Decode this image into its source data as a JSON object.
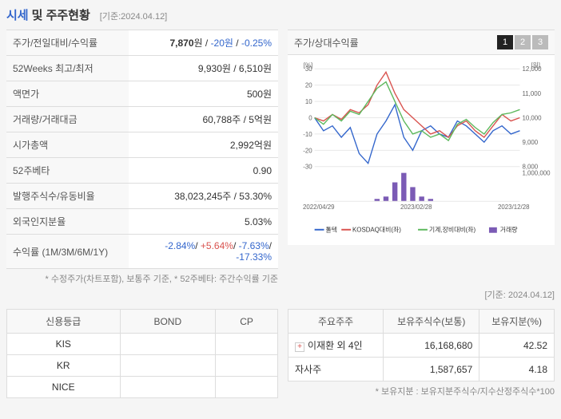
{
  "header": {
    "left": "시세",
    "right": "및 주주현황",
    "date": "[기준:2024.04.12]"
  },
  "info": {
    "rows": [
      {
        "label": "주가/전일대비/수익률",
        "value_html": "<b>7,870</b>원 / <span class='neg'>-20원</span> / <span class='neg'>-0.25%</span>"
      },
      {
        "label": "52Weeks 최고/최저",
        "value": "9,930원 / 6,510원"
      },
      {
        "label": "액면가",
        "value": "500원"
      },
      {
        "label": "거래량/거래대금",
        "value": "60,788주 / 5억원"
      },
      {
        "label": "시가총액",
        "value": "2,992억원"
      },
      {
        "label": "52주베타",
        "value": "0.90"
      },
      {
        "label": "발행주식수/유동비율",
        "value": "38,023,245주 / 53.30%"
      },
      {
        "label": "외국인지분율",
        "value": "5.03%"
      },
      {
        "label": "수익률 (1M/3M/6M/1Y)",
        "value_html": "<span class='neg'>-2.84%</span>/ <span class='pos'>+5.64%</span>/ <span class='neg'>-7.63%</span>/ <span class='neg'>-17.33%</span>"
      }
    ],
    "footnote": "* 수정주가(차트포함), 보통주 기준, * 52주베타: 주간수익률 기준"
  },
  "chart": {
    "title": "주가/상대수익률",
    "tabs": [
      "1",
      "2",
      "3"
    ],
    "active_tab": 0,
    "ylabel_left": "[%]",
    "ylabel_right": "[원]",
    "yticks_left": [
      -30,
      -20,
      -10,
      0,
      10,
      20,
      30
    ],
    "yticks_right": [
      8000,
      9000,
      10000,
      11000,
      12000
    ],
    "vol_tick": "1,000,000",
    "xticks": [
      "2022/04/29",
      "2023/02/28",
      "2023/12/28"
    ],
    "series": [
      {
        "name": "톨텍",
        "color": "#3366cc",
        "pts": [
          0,
          -8,
          -5,
          -12,
          -6,
          -22,
          -28,
          -10,
          -2,
          8,
          -12,
          -20,
          -8,
          -5,
          -10,
          -12,
          -2,
          -5,
          -10,
          -15,
          -8,
          -5,
          -10,
          -8
        ]
      },
      {
        "name": "KOSDAQ대비(좌)",
        "color": "#d9534f",
        "pts": [
          0,
          -2,
          2,
          -1,
          5,
          3,
          8,
          20,
          28,
          15,
          5,
          0,
          -5,
          -10,
          -8,
          -12,
          -5,
          -2,
          -8,
          -12,
          -5,
          2,
          -2,
          0
        ]
      },
      {
        "name": "기계,장비대비(좌)",
        "color": "#5cb85c",
        "pts": [
          0,
          -4,
          2,
          -2,
          4,
          2,
          10,
          18,
          22,
          10,
          -2,
          -10,
          -8,
          -12,
          -10,
          -14,
          -4,
          -1,
          -6,
          -10,
          -3,
          2,
          3,
          5
        ]
      }
    ],
    "volume": {
      "name": "거래량",
      "color": "#7b5bb5",
      "vals": [
        0,
        0,
        0,
        0,
        0,
        0,
        0,
        5,
        10,
        40,
        60,
        30,
        10,
        5,
        0,
        0,
        0,
        0,
        0,
        0,
        0,
        0,
        0,
        0
      ]
    },
    "colors": {
      "grid": "#e8e8e8",
      "axis": "#888",
      "bg": "#ffffff"
    }
  },
  "date2": "[기준: 2024.04.12]",
  "credit": {
    "headers": [
      "신용등급",
      "BOND",
      "CP"
    ],
    "rows": [
      [
        "KIS",
        "",
        ""
      ],
      [
        "KR",
        "",
        ""
      ],
      [
        "NICE",
        "",
        ""
      ]
    ]
  },
  "share": {
    "headers": [
      "주요주주",
      "보유주식수(보통)",
      "보유지분(%)"
    ],
    "rows": [
      {
        "name": "이재환 외 4인",
        "shares": "16,168,680",
        "pct": "42.52",
        "expand": true
      },
      {
        "name": "자사주",
        "shares": "1,587,657",
        "pct": "4.18",
        "expand": false
      }
    ],
    "footnote": "* 보유지분 : 보유지분주식수/지수산정주식수*100"
  }
}
